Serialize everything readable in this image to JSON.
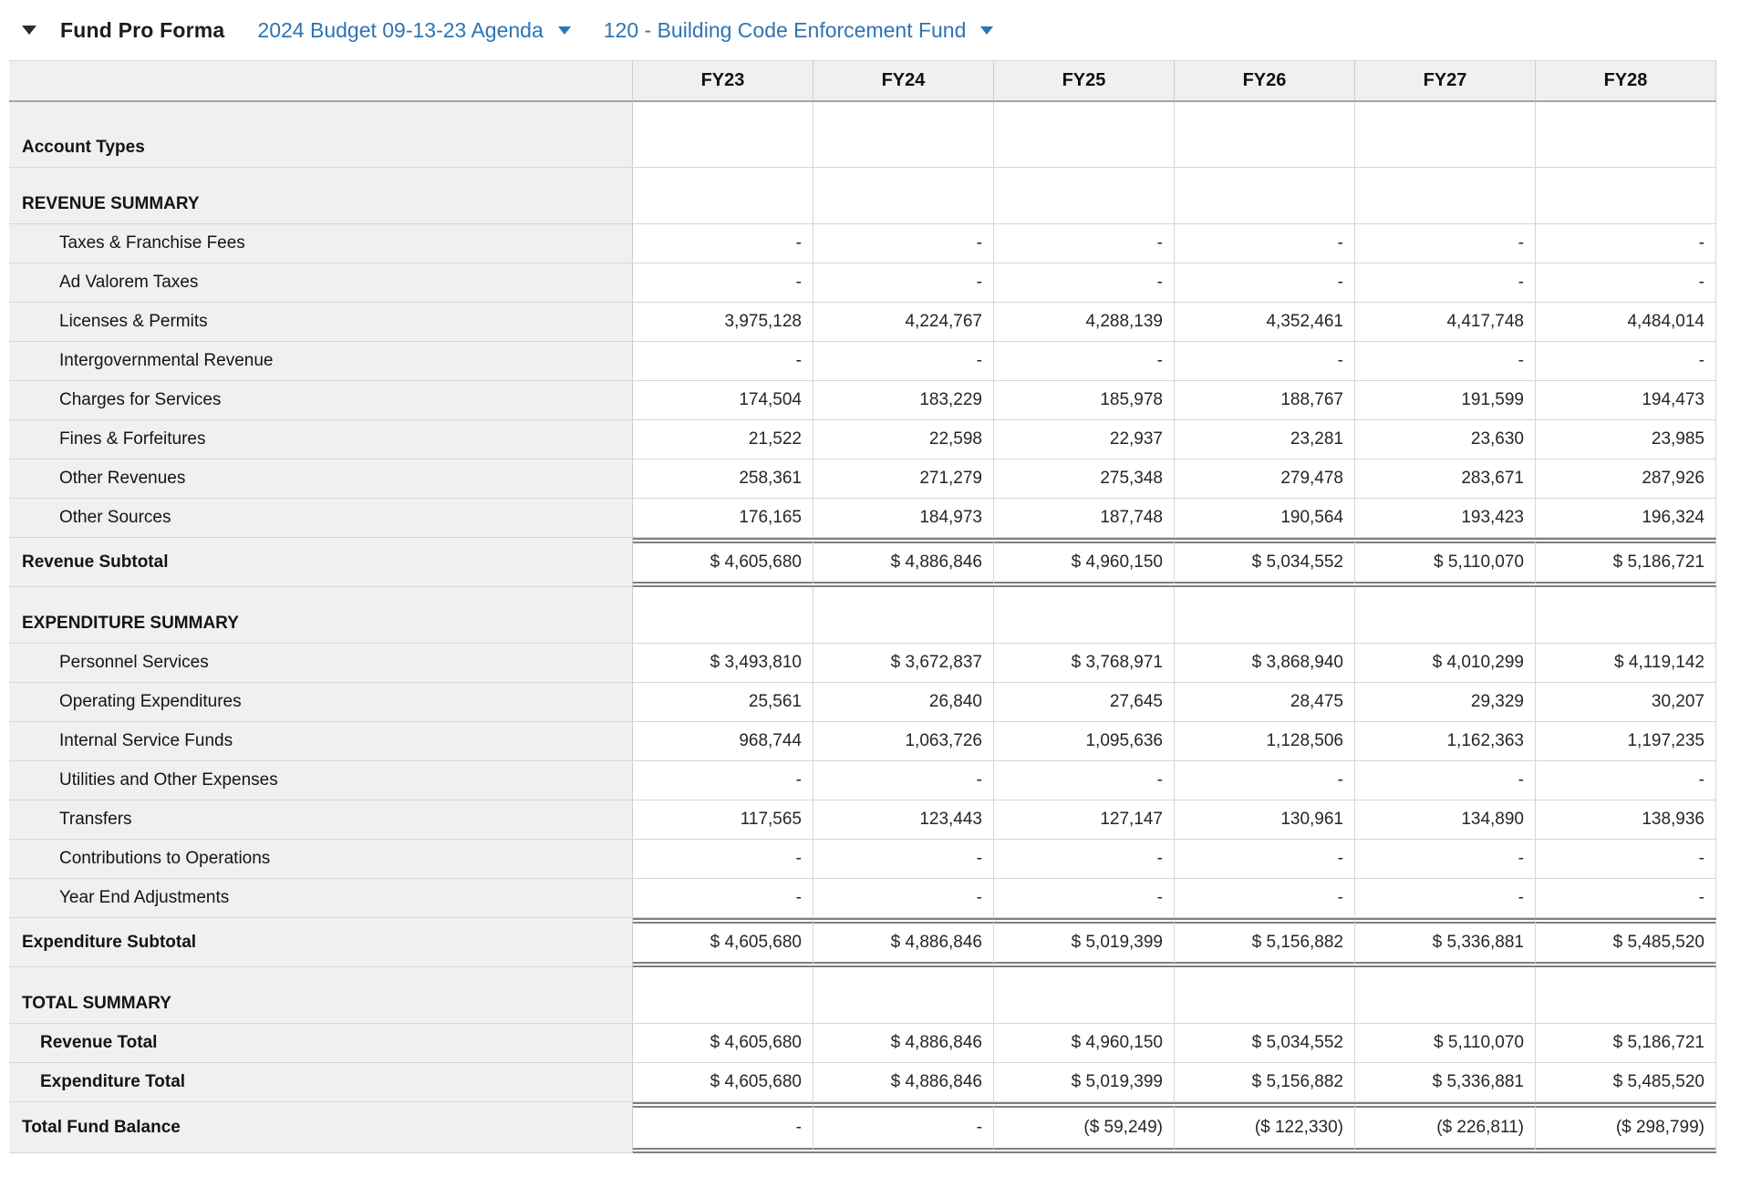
{
  "toolbar": {
    "title": "Fund Pro Forma",
    "budget_dropdown": "2024 Budget 09-13-23 Agenda",
    "fund_dropdown": "120 - Building Code Enforcement Fund"
  },
  "colors": {
    "link_blue": "#2e74b5",
    "label_column_bg": "#f0f0f0",
    "double_border": "#7f7f7f"
  },
  "table": {
    "columns": [
      "FY23",
      "FY24",
      "FY25",
      "FY26",
      "FY27",
      "FY28"
    ],
    "rows": [
      {
        "type": "section-first",
        "label": "Account Types",
        "values": [
          "",
          "",
          "",
          "",
          "",
          ""
        ]
      },
      {
        "type": "section",
        "label": "REVENUE SUMMARY",
        "values": [
          "",
          "",
          "",
          "",
          "",
          ""
        ]
      },
      {
        "type": "detail",
        "label": "Taxes & Franchise Fees",
        "values": [
          "-",
          "-",
          "-",
          "-",
          "-",
          "-"
        ]
      },
      {
        "type": "detail",
        "label": "Ad Valorem Taxes",
        "values": [
          "-",
          "-",
          "-",
          "-",
          "-",
          "-"
        ]
      },
      {
        "type": "detail",
        "label": "Licenses & Permits",
        "values": [
          "3,975,128",
          "4,224,767",
          "4,288,139",
          "4,352,461",
          "4,417,748",
          "4,484,014"
        ]
      },
      {
        "type": "detail",
        "label": "Intergovernmental Revenue",
        "values": [
          "-",
          "-",
          "-",
          "-",
          "-",
          "-"
        ]
      },
      {
        "type": "detail",
        "label": "Charges for Services",
        "values": [
          "174,504",
          "183,229",
          "185,978",
          "188,767",
          "191,599",
          "194,473"
        ]
      },
      {
        "type": "detail",
        "label": "Fines & Forfeitures",
        "values": [
          "21,522",
          "22,598",
          "22,937",
          "23,281",
          "23,630",
          "23,985"
        ]
      },
      {
        "type": "detail",
        "label": "Other Revenues",
        "values": [
          "258,361",
          "271,279",
          "275,348",
          "279,478",
          "283,671",
          "287,926"
        ]
      },
      {
        "type": "detail",
        "label": "Other Sources",
        "values": [
          "176,165",
          "184,973",
          "187,748",
          "190,564",
          "193,423",
          "196,324"
        ]
      },
      {
        "type": "subtotal",
        "label": "Revenue Subtotal",
        "values": [
          "$ 4,605,680",
          "$ 4,886,846",
          "$ 4,960,150",
          "$ 5,034,552",
          "$ 5,110,070",
          "$ 5,186,721"
        ]
      },
      {
        "type": "section",
        "label": "EXPENDITURE SUMMARY",
        "values": [
          "",
          "",
          "",
          "",
          "",
          ""
        ]
      },
      {
        "type": "detail",
        "label": "Personnel Services",
        "values": [
          "$ 3,493,810",
          "$ 3,672,837",
          "$ 3,768,971",
          "$ 3,868,940",
          "$ 4,010,299",
          "$ 4,119,142"
        ]
      },
      {
        "type": "detail",
        "label": "Operating Expenditures",
        "values": [
          "25,561",
          "26,840",
          "27,645",
          "28,475",
          "29,329",
          "30,207"
        ]
      },
      {
        "type": "detail",
        "label": "Internal Service Funds",
        "values": [
          "968,744",
          "1,063,726",
          "1,095,636",
          "1,128,506",
          "1,162,363",
          "1,197,235"
        ]
      },
      {
        "type": "detail",
        "label": "Utilities and Other Expenses",
        "values": [
          "-",
          "-",
          "-",
          "-",
          "-",
          "-"
        ]
      },
      {
        "type": "detail",
        "label": "Transfers",
        "values": [
          "117,565",
          "123,443",
          "127,147",
          "130,961",
          "134,890",
          "138,936"
        ]
      },
      {
        "type": "detail",
        "label": "Contributions to Operations",
        "values": [
          "-",
          "-",
          "-",
          "-",
          "-",
          "-"
        ]
      },
      {
        "type": "detail",
        "label": "Year End Adjustments",
        "values": [
          "-",
          "-",
          "-",
          "-",
          "-",
          "-"
        ]
      },
      {
        "type": "subtotal",
        "label": "Expenditure Subtotal",
        "values": [
          "$ 4,605,680",
          "$ 4,886,846",
          "$ 5,019,399",
          "$ 5,156,882",
          "$ 5,336,881",
          "$ 5,485,520"
        ]
      },
      {
        "type": "section",
        "label": "TOTAL SUMMARY",
        "values": [
          "",
          "",
          "",
          "",
          "",
          ""
        ]
      },
      {
        "type": "total",
        "label": "Revenue Total",
        "values": [
          "$ 4,605,680",
          "$ 4,886,846",
          "$ 4,960,150",
          "$ 5,034,552",
          "$ 5,110,070",
          "$ 5,186,721"
        ]
      },
      {
        "type": "total",
        "label": "Expenditure Total",
        "values": [
          "$ 4,605,680",
          "$ 4,886,846",
          "$ 5,019,399",
          "$ 5,156,882",
          "$ 5,336,881",
          "$ 5,485,520"
        ]
      },
      {
        "type": "grandtotal",
        "label": "Total Fund Balance",
        "values": [
          "-",
          "-",
          "($ 59,249)",
          "($ 122,330)",
          "($ 226,811)",
          "($ 298,799)"
        ]
      }
    ]
  }
}
